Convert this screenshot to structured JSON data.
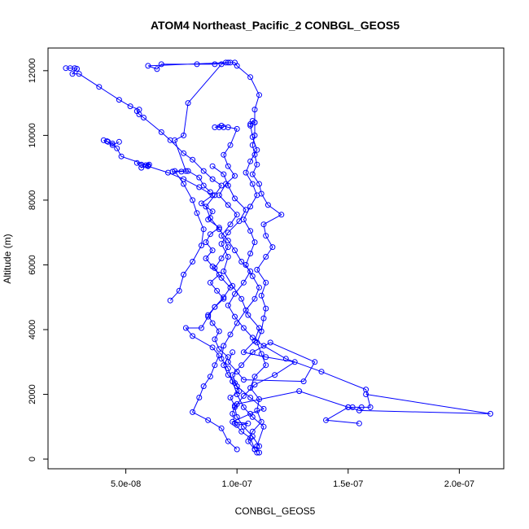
{
  "chart_data": {
    "type": "line",
    "title": "ATOM4 Northeast_Pacific_2 CONBGL_GEOS5",
    "xlabel": "CONBGL_GEOS5",
    "ylabel": "Altitude (m)",
    "xlim": [
      1.5e-08,
      2.2e-07
    ],
    "ylim": [
      -300,
      12700
    ],
    "x_ticks": [
      5e-08,
      1e-07,
      1.5e-07,
      2e-07
    ],
    "x_tick_labels": [
      "5.0e-08",
      "1.0e-07",
      "1.5e-07",
      "2.0e-07"
    ],
    "y_ticks": [
      0,
      2000,
      4000,
      6000,
      8000,
      10000,
      12000
    ],
    "y_tick_labels": [
      "0",
      "2000",
      "4000",
      "6000",
      "8000",
      "10000",
      "12000"
    ],
    "grid": false,
    "legend": "none",
    "series_color": "#0000ff",
    "series": [
      {
        "points": [
          [
            1.09e-07,
            200
          ],
          [
            1.08e-07,
            300
          ],
          [
            1.06e-07,
            650
          ],
          [
            1.02e-07,
            850
          ],
          [
            9.9e-08,
            1100
          ],
          [
            9.8e-08,
            1400
          ],
          [
            9.9e-08,
            1650
          ],
          [
            9.7e-08,
            1900
          ],
          [
            1.01e-07,
            2100
          ],
          [
            9.9e-08,
            2350
          ],
          [
            9.6e-08,
            2600
          ],
          [
            9.4e-08,
            2900
          ],
          [
            9.6e-08,
            3150
          ],
          [
            9.2e-08,
            3400
          ],
          [
            9e-08,
            3700
          ],
          [
            9.2e-08,
            3950
          ],
          [
            8.9e-08,
            4200
          ],
          [
            8.7e-08,
            4450
          ],
          [
            9e-08,
            4700
          ],
          [
            9.4e-08,
            4950
          ],
          [
            9.1e-08,
            5200
          ],
          [
            8.8e-08,
            5450
          ],
          [
            9.2e-08,
            5700
          ],
          [
            8.9e-08,
            5950
          ],
          [
            8.6e-08,
            6200
          ],
          [
            8.9e-08,
            6450
          ],
          [
            8.6e-08,
            6700
          ],
          [
            8.8e-08,
            6950
          ],
          [
            9.2e-08,
            7150
          ],
          [
            8.7e-08,
            7400
          ],
          [
            8.9e-08,
            7650
          ],
          [
            8.4e-08,
            7900
          ],
          [
            8.9e-08,
            8150
          ],
          [
            8.3e-08,
            8400
          ],
          [
            7.6e-08,
            8650
          ],
          [
            6.9e-08,
            8850
          ],
          [
            6e-08,
            9050
          ],
          [
            6.05e-08,
            9100
          ],
          [
            5.9e-08,
            9080
          ],
          [
            5.7e-08,
            9100
          ],
          [
            5.5e-08,
            9150
          ],
          [
            5.7e-08,
            9000
          ],
          [
            6e-08,
            9070
          ],
          [
            4.8e-08,
            9350
          ],
          [
            4.6e-08,
            9600
          ],
          [
            4.4e-08,
            9750
          ],
          [
            4.2e-08,
            9800
          ],
          [
            4e-08,
            9850
          ],
          [
            4.15e-08,
            9820
          ],
          [
            4.4e-08,
            9700
          ],
          [
            4.7e-08,
            9800
          ]
        ]
      },
      {
        "points": [
          [
            2.3e-08,
            12080
          ],
          [
            2.5e-08,
            12080
          ],
          [
            2.7e-08,
            12080
          ],
          [
            2.8e-08,
            12060
          ],
          [
            2.6e-08,
            11900
          ],
          [
            2.9e-08,
            11900
          ],
          [
            3.8e-08,
            11500
          ],
          [
            4.7e-08,
            11100
          ],
          [
            5.2e-08,
            10900
          ],
          [
            5.6e-08,
            10800
          ],
          [
            5.5e-08,
            10750
          ],
          [
            5.6e-08,
            10650
          ],
          [
            5.8e-08,
            10550
          ],
          [
            6.6e-08,
            10100
          ],
          [
            7e-08,
            9850
          ],
          [
            7.6e-08,
            9450
          ],
          [
            8e-08,
            9250
          ],
          [
            8.5e-08,
            8900
          ],
          [
            8.9e-08,
            8650
          ],
          [
            9.3e-08,
            8450
          ],
          [
            9e-08,
            8150
          ],
          [
            8.6e-08,
            7800
          ],
          [
            8.8e-08,
            7450
          ],
          [
            9.2e-08,
            7100
          ],
          [
            9.6e-08,
            6750
          ],
          [
            9.9e-08,
            6450
          ],
          [
            1.02e-07,
            6100
          ],
          [
            1.06e-07,
            5800
          ],
          [
            1.03e-07,
            5450
          ],
          [
            9.9e-08,
            5100
          ],
          [
            9.6e-08,
            4750
          ],
          [
            9.9e-08,
            4400
          ],
          [
            1.03e-07,
            4050
          ],
          [
            1.07e-07,
            3750
          ],
          [
            1.12e-07,
            3500
          ],
          [
            1.22e-07,
            3100
          ],
          [
            1.38e-07,
            2700
          ],
          [
            1.58e-07,
            2150
          ],
          [
            1.6e-07,
            1600
          ],
          [
            1.56e-07,
            1600
          ],
          [
            1.52e-07,
            1600
          ],
          [
            1.5e-07,
            1600
          ],
          [
            1.4e-07,
            1200
          ],
          [
            1.55e-07,
            1100
          ]
        ]
      },
      {
        "points": [
          [
            1.1e-07,
            200
          ],
          [
            1.09e-07,
            400
          ],
          [
            1.12e-07,
            1000
          ],
          [
            1.07e-07,
            1300
          ],
          [
            1.03e-07,
            1600
          ],
          [
            1e-07,
            2000
          ],
          [
            9.8e-08,
            2400
          ],
          [
            9.6e-08,
            2800
          ],
          [
            9.3e-08,
            3100
          ],
          [
            9.4e-08,
            3500
          ],
          [
            9.7e-08,
            3850
          ],
          [
            1e-07,
            4200
          ],
          [
            1.04e-07,
            4600
          ],
          [
            1.08e-07,
            4950
          ],
          [
            1.1e-07,
            5300
          ],
          [
            1.07e-07,
            5650
          ],
          [
            1.04e-07,
            6000
          ],
          [
            1.06e-07,
            6350
          ],
          [
            1.08e-07,
            6700
          ],
          [
            1.06e-07,
            7050
          ],
          [
            1.03e-07,
            7400
          ],
          [
            1.06e-07,
            7800
          ],
          [
            1.09e-07,
            8150
          ],
          [
            1.07e-07,
            8500
          ],
          [
            1.04e-07,
            8850
          ],
          [
            1.06e-07,
            9200
          ],
          [
            1.09e-07,
            9550
          ],
          [
            1.07e-07,
            9950
          ],
          [
            1.06e-07,
            10350
          ],
          [
            1.08e-07,
            10400
          ],
          [
            1.07e-07,
            10450
          ],
          [
            1.06e-07,
            10300
          ]
        ]
      },
      {
        "points": [
          [
            1.08e-07,
            300
          ],
          [
            1.05e-07,
            550
          ],
          [
            1.07e-07,
            850
          ],
          [
            1.11e-07,
            1150
          ],
          [
            1.09e-07,
            1500
          ],
          [
            1.1e-07,
            1850
          ],
          [
            1.06e-07,
            2200
          ],
          [
            1.08e-07,
            2550
          ],
          [
            1.13e-07,
            2900
          ],
          [
            1.11e-07,
            3250
          ],
          [
            1.09e-07,
            3600
          ],
          [
            1.11e-07,
            3950
          ],
          [
            1.12e-07,
            4350
          ],
          [
            1.13e-07,
            4650
          ],
          [
            1.11e-07,
            5050
          ],
          [
            1.13e-07,
            5450
          ],
          [
            1.09e-07,
            5850
          ],
          [
            1.13e-07,
            6250
          ],
          [
            1.16e-07,
            6550
          ],
          [
            1.13e-07,
            6900
          ],
          [
            1.12e-07,
            7250
          ],
          [
            1.2e-07,
            7550
          ],
          [
            1.14e-07,
            7850
          ],
          [
            1.11e-07,
            8200
          ],
          [
            1.1e-07,
            8500
          ],
          [
            1.07e-07,
            8800
          ],
          [
            1.09e-07,
            9100
          ],
          [
            1.08e-07,
            9400
          ],
          [
            1.07e-07,
            9700
          ],
          [
            1.08e-07,
            10000
          ],
          [
            1.08e-07,
            10400
          ],
          [
            1.08e-07,
            10800
          ],
          [
            1.1e-07,
            11250
          ],
          [
            1.06e-07,
            11800
          ],
          [
            1e-07,
            12150
          ],
          [
            9.9e-08,
            12250
          ],
          [
            9.7e-08,
            12250
          ],
          [
            9.5e-08,
            12250
          ],
          [
            9e-08,
            12200
          ],
          [
            8.2e-08,
            12200
          ],
          [
            6.6e-08,
            12200
          ],
          [
            6.4e-08,
            12050
          ],
          [
            6e-08,
            12150
          ],
          [
            9.6e-08,
            12250
          ],
          [
            9.3e-08,
            12200
          ],
          [
            7.8e-08,
            11000
          ],
          [
            7.6e-08,
            10000
          ],
          [
            7.2e-08,
            9850
          ],
          [
            7.7e-08,
            8900
          ],
          [
            7.5e-08,
            8880
          ],
          [
            7.1e-08,
            8880
          ]
        ]
      },
      {
        "points": [
          [
            9.4e-08,
            10250
          ],
          [
            9.2e-08,
            10250
          ],
          [
            9e-08,
            10250
          ],
          [
            9.3e-08,
            10300
          ],
          [
            9.6e-08,
            10250
          ],
          [
            1e-07,
            10200
          ],
          [
            9.7e-08,
            9700
          ],
          [
            9.4e-08,
            9400
          ],
          [
            9.6e-08,
            9050
          ],
          [
            9.9e-08,
            8750
          ],
          [
            9.5e-08,
            8500
          ],
          [
            9.2e-08,
            8150
          ],
          [
            9.6e-08,
            7850
          ],
          [
            1e-07,
            7550
          ],
          [
            9.7e-08,
            7250
          ],
          [
            9.3e-08,
            6900
          ],
          [
            9.6e-08,
            6550
          ],
          [
            9.3e-08,
            6200
          ],
          [
            9e-08,
            5900
          ],
          [
            9.3e-08,
            5600
          ],
          [
            9.7e-08,
            5300
          ],
          [
            9.4e-08,
            5000
          ],
          [
            9e-08,
            4700
          ],
          [
            8.7e-08,
            4400
          ],
          [
            8.4e-08,
            4050
          ],
          [
            7.7e-08,
            4050
          ],
          [
            8e-08,
            3800
          ],
          [
            8.9e-08,
            3450
          ],
          [
            9.2e-08,
            3200
          ],
          [
            9e-08,
            2900
          ],
          [
            8.8e-08,
            2550
          ],
          [
            8.5e-08,
            2250
          ],
          [
            8.3e-08,
            1900
          ],
          [
            8e-08,
            1450
          ],
          [
            8.7e-08,
            1200
          ],
          [
            9.3e-08,
            950
          ],
          [
            9.6e-08,
            550
          ],
          [
            1e-07,
            300
          ]
        ]
      },
      {
        "points": [
          [
            7e-08,
            4900
          ],
          [
            7.4e-08,
            5200
          ],
          [
            7.6e-08,
            5700
          ],
          [
            8e-08,
            6100
          ],
          [
            8.4e-08,
            6600
          ],
          [
            8.5e-08,
            7100
          ],
          [
            8.2e-08,
            7600
          ],
          [
            8e-08,
            8000
          ],
          [
            7.6e-08,
            8500
          ],
          [
            7.2e-08,
            8900
          ],
          [
            7.8e-08,
            8900
          ],
          [
            8.3e-08,
            8700
          ],
          [
            8.5e-08,
            8450
          ],
          [
            8.8e-08,
            8250
          ]
        ]
      },
      {
        "points": [
          [
            1.1e-07,
            400
          ],
          [
            1.07e-07,
            700
          ],
          [
            1.03e-07,
            1000
          ],
          [
            1e-07,
            1300
          ],
          [
            9.9e-08,
            1600
          ],
          [
            1.03e-07,
            1950
          ],
          [
            1.08e-07,
            2300
          ],
          [
            1.17e-07,
            2600
          ],
          [
            1.26e-07,
            3000
          ],
          [
            1.13e-07,
            3150
          ],
          [
            1.03e-07,
            3300
          ],
          [
            1.08e-07,
            3650
          ],
          [
            1.1e-07,
            4050
          ],
          [
            1.05e-07,
            4450
          ],
          [
            1.02e-07,
            4950
          ],
          [
            9.8e-08,
            5350
          ],
          [
            9.4e-08,
            5800
          ],
          [
            9.6e-08,
            6250
          ],
          [
            9.3e-08,
            6650
          ],
          [
            9.6e-08,
            7000
          ],
          [
            1.01e-07,
            7350
          ],
          [
            1.04e-07,
            7700
          ],
          [
            9.9e-08,
            8050
          ],
          [
            9.6e-08,
            8450
          ],
          [
            9.4e-08,
            8800
          ],
          [
            8.9e-08,
            9050
          ]
        ]
      },
      {
        "points": [
          [
            1e-07,
            1050
          ],
          [
            1.05e-07,
            1100
          ],
          [
            9.8e-08,
            1150
          ],
          [
            1.06e-07,
            1400
          ],
          [
            1.12e-07,
            1550
          ],
          [
            1.06e-07,
            1900
          ],
          [
            1e-07,
            2250
          ],
          [
            9.8e-08,
            2600
          ],
          [
            1.02e-07,
            2900
          ],
          [
            1.07e-07,
            3300
          ],
          [
            1.15e-07,
            3600
          ],
          [
            1.35e-07,
            3000
          ],
          [
            1.3e-07,
            2400
          ],
          [
            1.03e-07,
            2450
          ],
          [
            1e-07,
            2700
          ],
          [
            9.6e-08,
            3000
          ],
          [
            9.8e-08,
            3300
          ]
        ]
      },
      {
        "points": [
          [
            1e-07,
            1700
          ],
          [
            1.28e-07,
            2100
          ],
          [
            1.5e-07,
            1600
          ],
          [
            1.55e-07,
            1500
          ],
          [
            2.14e-07,
            1400
          ],
          [
            1.58e-07,
            2000
          ]
        ]
      }
    ]
  }
}
